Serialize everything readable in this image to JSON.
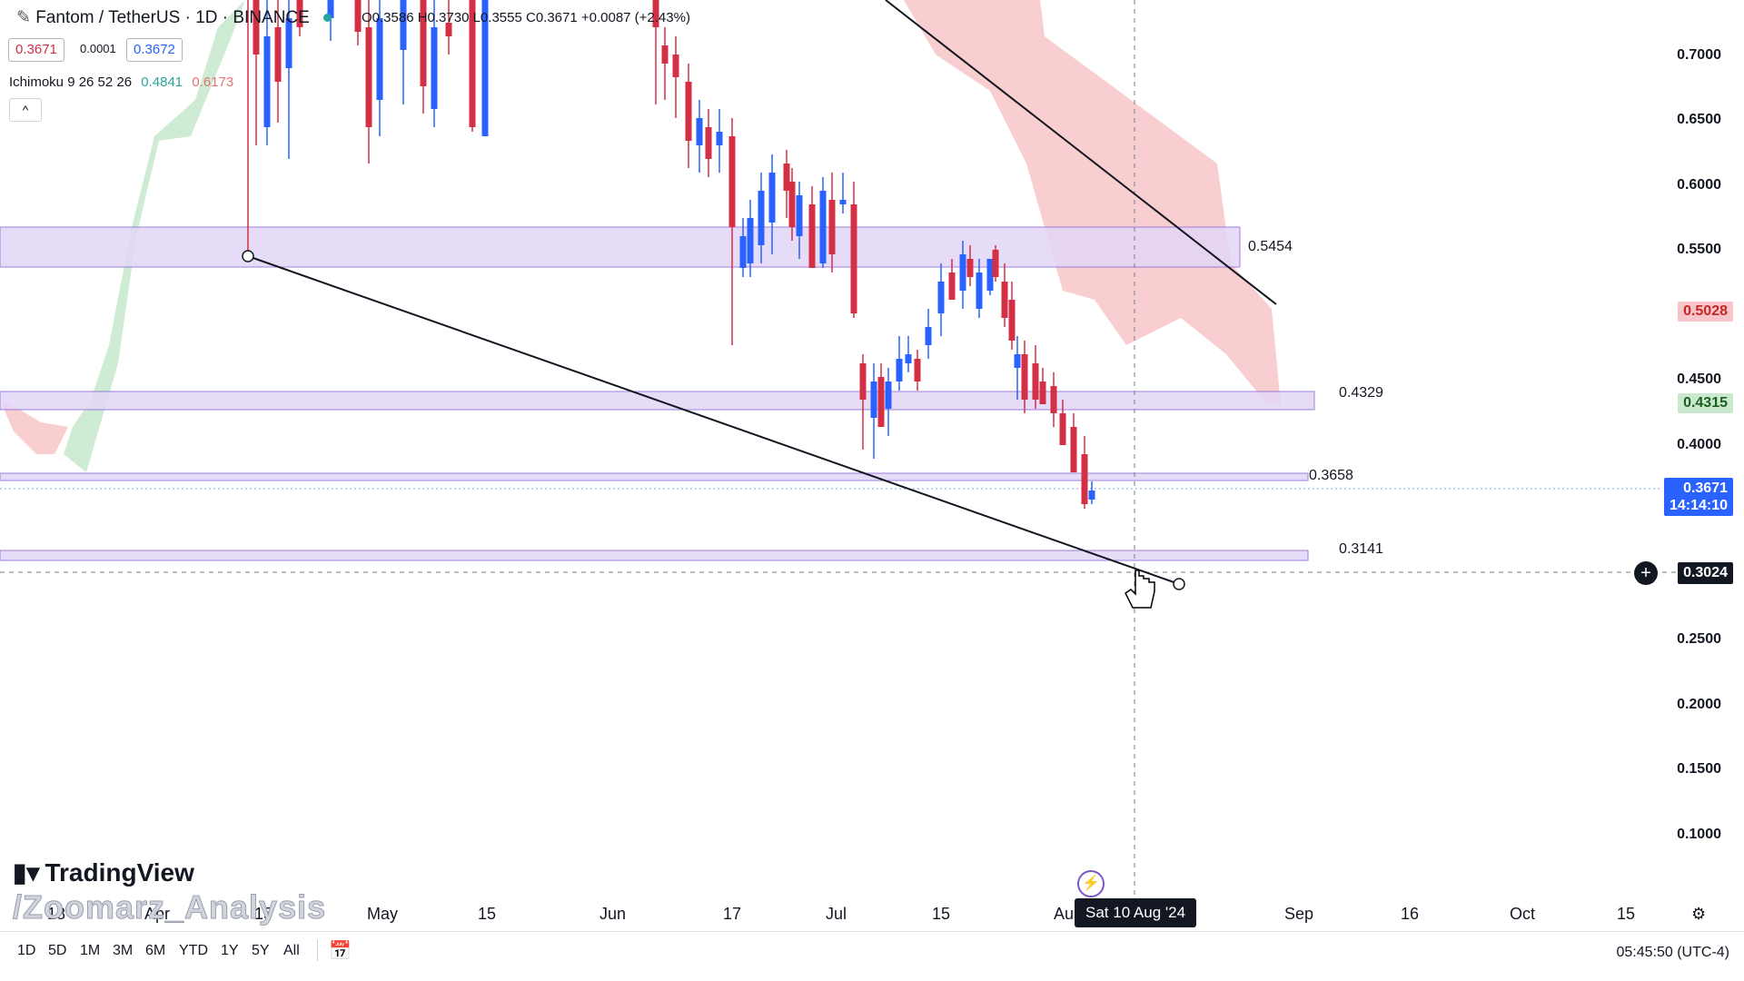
{
  "header": {
    "symbol_title": "Fantom / TetherUS · 1D · BINANCE",
    "ohlc": "O0.3586 H0.3730 L0.3555 C0.3671 +0.0087 (+2.43%)",
    "bid": "0.3671",
    "spread": "0.0001",
    "ask": "0.3672",
    "indicator_name": "Ichimoku 9 26 52 26",
    "indicator_value_1": "0.4841",
    "indicator_value_2": "0.6173",
    "collapse_icon": "chevron-up-icon",
    "collapse_label": "^"
  },
  "price_axis": {
    "labels": [
      "0.7000",
      "0.6500",
      "0.6000",
      "0.5500",
      "0.4500",
      "0.4000",
      "0.2500",
      "0.2000",
      "0.1500",
      "0.1000"
    ],
    "tag_red": "0.5028",
    "tag_green": "0.4315",
    "current_price": "0.3671",
    "countdown": "14:14:10",
    "crosshair_price": "0.3024"
  },
  "zones": {
    "z1": "0.5454",
    "z2": "0.4329",
    "z3": "0.3658",
    "z4": "0.3141"
  },
  "time_axis": {
    "labels": [
      "18",
      "Apr",
      "15",
      "May",
      "15",
      "Jun",
      "17",
      "Jul",
      "15",
      "Au",
      "Sep",
      "16",
      "Oct",
      "15"
    ],
    "crosshair_date": "Sat 10 Aug '24"
  },
  "watermark": {
    "brand": "TradingView",
    "user": "/Zoomarz_Analysis"
  },
  "footer": {
    "ranges": [
      "1D",
      "5D",
      "1M",
      "3M",
      "6M",
      "YTD",
      "1Y",
      "5Y",
      "All"
    ],
    "clock": "05:45:50 (UTC-4)"
  },
  "colors": {
    "bull": "#2962ff",
    "bear": "#d32f45",
    "zone_fill": "#e3d7f7",
    "zone_stroke": "#8e6bd4",
    "cloud_red": "#f7c5c9",
    "cloud_green": "#c9e9cf"
  }
}
